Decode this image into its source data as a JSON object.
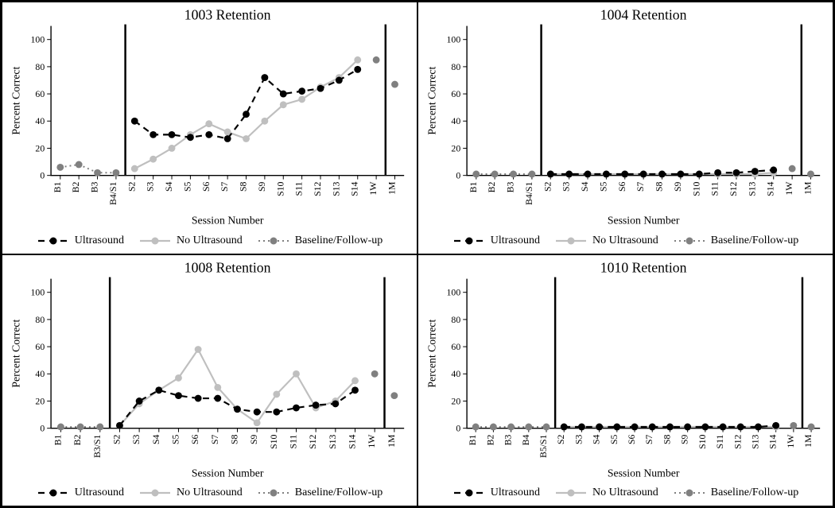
{
  "global": {
    "background_color": "#ffffff",
    "panel_border_color": "#000000",
    "font_family": "Times New Roman",
    "title_fontsize": 18,
    "axis_label_fontsize": 14,
    "tick_fontsize": 12,
    "legend_fontsize": 14,
    "ylim": [
      0,
      110
    ],
    "ytick_step": 20,
    "ytick_max": 100,
    "ylabel": "Percent Correct",
    "xlabel": "Session Number",
    "axis_color": "#000000",
    "tick_color": "#000000",
    "separator_color": "#000000",
    "separator_width": 2.5,
    "series_styles": {
      "ultrasound": {
        "color": "#000000",
        "dash": "8,6",
        "marker": "circle",
        "marker_fill": "#000000",
        "marker_size": 4.5,
        "line_width": 2.2,
        "label": "Ultrasound"
      },
      "no_ultrasound": {
        "color": "#bfbfbf",
        "dash": "",
        "marker": "circle",
        "marker_fill": "#bfbfbf",
        "marker_size": 4.5,
        "line_width": 2.2,
        "label": "No Ultrasound"
      },
      "baseline": {
        "color": "#808080",
        "dash": "2,4",
        "marker": "circle",
        "marker_fill": "#808080",
        "marker_size": 4.5,
        "line_width": 2.0,
        "label": "Baseline/Follow-up"
      }
    },
    "legend_order": [
      "ultrasound",
      "no_ultrasound",
      "baseline"
    ]
  },
  "panels": [
    {
      "title": "1003 Retention",
      "categories": [
        "B1",
        "B2",
        "B3",
        "B4/S1",
        "S2",
        "S3",
        "S4",
        "S5",
        "S6",
        "S7",
        "S8",
        "S9",
        "S10",
        "S11",
        "S12",
        "S13",
        "S14",
        "1W",
        "1M"
      ],
      "separators_after": [
        "B4/S1",
        "1W"
      ],
      "series": {
        "baseline": {
          "points": [
            {
              "x": "B1",
              "y": 6
            },
            {
              "x": "B2",
              "y": 8
            },
            {
              "x": "B3",
              "y": 2
            },
            {
              "x": "B4/S1",
              "y": 2
            },
            {
              "x": "1W",
              "y": 85
            },
            {
              "x": "1M",
              "y": 67
            }
          ],
          "segments": [
            [
              "B1",
              "B2",
              "B3",
              "B4/S1"
            ]
          ]
        },
        "ultrasound": {
          "points": [
            {
              "x": "S2",
              "y": 40
            },
            {
              "x": "S3",
              "y": 30
            },
            {
              "x": "S4",
              "y": 30
            },
            {
              "x": "S5",
              "y": 28
            },
            {
              "x": "S6",
              "y": 30
            },
            {
              "x": "S7",
              "y": 27
            },
            {
              "x": "S8",
              "y": 45
            },
            {
              "x": "S9",
              "y": 72
            },
            {
              "x": "S10",
              "y": 60
            },
            {
              "x": "S11",
              "y": 62
            },
            {
              "x": "S12",
              "y": 64
            },
            {
              "x": "S13",
              "y": 70
            },
            {
              "x": "S14",
              "y": 78
            }
          ],
          "segments": [
            [
              "S2",
              "S3",
              "S4",
              "S5",
              "S6",
              "S7",
              "S8",
              "S9",
              "S10",
              "S11",
              "S12",
              "S13",
              "S14"
            ]
          ]
        },
        "no_ultrasound": {
          "points": [
            {
              "x": "S2",
              "y": 5
            },
            {
              "x": "S3",
              "y": 12
            },
            {
              "x": "S4",
              "y": 20
            },
            {
              "x": "S5",
              "y": 30
            },
            {
              "x": "S6",
              "y": 38
            },
            {
              "x": "S7",
              "y": 32
            },
            {
              "x": "S8",
              "y": 27
            },
            {
              "x": "S9",
              "y": 40
            },
            {
              "x": "S10",
              "y": 52
            },
            {
              "x": "S11",
              "y": 56
            },
            {
              "x": "S12",
              "y": 65
            },
            {
              "x": "S13",
              "y": 72
            },
            {
              "x": "S14",
              "y": 85
            }
          ],
          "segments": [
            [
              "S2",
              "S3",
              "S4",
              "S5",
              "S6",
              "S7",
              "S8",
              "S9",
              "S10",
              "S11",
              "S12",
              "S13",
              "S14"
            ]
          ]
        }
      }
    },
    {
      "title": "1004 Retention",
      "categories": [
        "B1",
        "B2",
        "B3",
        "B4/S1",
        "S2",
        "S3",
        "S4",
        "S5",
        "S6",
        "S7",
        "S8",
        "S9",
        "S10",
        "S11",
        "S12",
        "S13",
        "S14",
        "1W",
        "1M"
      ],
      "separators_after": [
        "B4/S1",
        "1W"
      ],
      "series": {
        "baseline": {
          "points": [
            {
              "x": "B1",
              "y": 1
            },
            {
              "x": "B2",
              "y": 1
            },
            {
              "x": "B3",
              "y": 1
            },
            {
              "x": "B4/S1",
              "y": 1
            },
            {
              "x": "1W",
              "y": 5
            },
            {
              "x": "1M",
              "y": 1
            }
          ],
          "segments": [
            [
              "B1",
              "B2",
              "B3",
              "B4/S1"
            ]
          ]
        },
        "ultrasound": {
          "points": [
            {
              "x": "S2",
              "y": 1
            },
            {
              "x": "S3",
              "y": 1
            },
            {
              "x": "S4",
              "y": 1
            },
            {
              "x": "S5",
              "y": 1
            },
            {
              "x": "S6",
              "y": 1
            },
            {
              "x": "S7",
              "y": 1
            },
            {
              "x": "S8",
              "y": 1
            },
            {
              "x": "S9",
              "y": 1
            },
            {
              "x": "S10",
              "y": 1
            },
            {
              "x": "S11",
              "y": 2
            },
            {
              "x": "S12",
              "y": 2
            },
            {
              "x": "S13",
              "y": 3
            },
            {
              "x": "S14",
              "y": 4
            }
          ],
          "segments": [
            [
              "S2",
              "S3",
              "S4",
              "S5",
              "S6",
              "S7",
              "S8",
              "S9",
              "S10",
              "S11",
              "S12",
              "S13",
              "S14"
            ]
          ]
        },
        "no_ultrasound": {
          "points": [
            {
              "x": "S2",
              "y": 1
            },
            {
              "x": "S3",
              "y": 1
            },
            {
              "x": "S4",
              "y": 1
            },
            {
              "x": "S5",
              "y": 1
            },
            {
              "x": "S6",
              "y": 1
            },
            {
              "x": "S7",
              "y": 1
            },
            {
              "x": "S8",
              "y": 1
            },
            {
              "x": "S9",
              "y": 1
            },
            {
              "x": "S10",
              "y": 1
            },
            {
              "x": "S11",
              "y": 1
            },
            {
              "x": "S12",
              "y": 1
            },
            {
              "x": "S13",
              "y": 1
            },
            {
              "x": "S14",
              "y": 2
            }
          ],
          "segments": [
            [
              "S2",
              "S3",
              "S4",
              "S5",
              "S6",
              "S7",
              "S8",
              "S9",
              "S10",
              "S11",
              "S12",
              "S13",
              "S14"
            ]
          ]
        }
      }
    },
    {
      "title": "1008 Retention",
      "categories": [
        "B1",
        "B2",
        "B3/S1",
        "S2",
        "S3",
        "S4",
        "S5",
        "S6",
        "S7",
        "S8",
        "S9",
        "S10",
        "S11",
        "S12",
        "S13",
        "S14",
        "1W",
        "1M"
      ],
      "separators_after": [
        "B3/S1",
        "1W"
      ],
      "series": {
        "baseline": {
          "points": [
            {
              "x": "B1",
              "y": 1
            },
            {
              "x": "B2",
              "y": 1
            },
            {
              "x": "B3/S1",
              "y": 1
            },
            {
              "x": "1W",
              "y": 40
            },
            {
              "x": "1M",
              "y": 24
            }
          ],
          "segments": [
            [
              "B1",
              "B2",
              "B3/S1"
            ]
          ]
        },
        "ultrasound": {
          "points": [
            {
              "x": "S2",
              "y": 2
            },
            {
              "x": "S3",
              "y": 20
            },
            {
              "x": "S4",
              "y": 28
            },
            {
              "x": "S5",
              "y": 24
            },
            {
              "x": "S6",
              "y": 22
            },
            {
              "x": "S7",
              "y": 22
            },
            {
              "x": "S8",
              "y": 14
            },
            {
              "x": "S9",
              "y": 12
            },
            {
              "x": "S10",
              "y": 12
            },
            {
              "x": "S11",
              "y": 15
            },
            {
              "x": "S12",
              "y": 17
            },
            {
              "x": "S13",
              "y": 18
            },
            {
              "x": "S14",
              "y": 28
            }
          ],
          "segments": [
            [
              "S2",
              "S3",
              "S4",
              "S5",
              "S6",
              "S7",
              "S8",
              "S9",
              "S10",
              "S11",
              "S12",
              "S13",
              "S14"
            ]
          ]
        },
        "no_ultrasound": {
          "points": [
            {
              "x": "S2",
              "y": 2
            },
            {
              "x": "S3",
              "y": 18
            },
            {
              "x": "S4",
              "y": 28
            },
            {
              "x": "S5",
              "y": 37
            },
            {
              "x": "S6",
              "y": 58
            },
            {
              "x": "S7",
              "y": 30
            },
            {
              "x": "S8",
              "y": 14
            },
            {
              "x": "S9",
              "y": 4
            },
            {
              "x": "S10",
              "y": 25
            },
            {
              "x": "S11",
              "y": 40
            },
            {
              "x": "S12",
              "y": 15
            },
            {
              "x": "S13",
              "y": 20
            },
            {
              "x": "S14",
              "y": 35
            }
          ],
          "segments": [
            [
              "S2",
              "S3",
              "S4",
              "S5",
              "S6",
              "S7",
              "S8",
              "S9",
              "S10",
              "S11",
              "S12",
              "S13",
              "S14"
            ]
          ]
        }
      }
    },
    {
      "title": "1010 Retention",
      "categories": [
        "B1",
        "B2",
        "B3",
        "B4",
        "B5/S1",
        "S2",
        "S3",
        "S4",
        "S5",
        "S6",
        "S7",
        "S8",
        "S9",
        "S10",
        "S11",
        "S12",
        "S13",
        "S14",
        "1W",
        "1M"
      ],
      "separators_after": [
        "B5/S1",
        "1W"
      ],
      "series": {
        "baseline": {
          "points": [
            {
              "x": "B1",
              "y": 1
            },
            {
              "x": "B2",
              "y": 1
            },
            {
              "x": "B3",
              "y": 1
            },
            {
              "x": "B4",
              "y": 1
            },
            {
              "x": "B5/S1",
              "y": 1
            },
            {
              "x": "1W",
              "y": 2
            },
            {
              "x": "1M",
              "y": 1
            }
          ],
          "segments": [
            [
              "B1",
              "B2",
              "B3",
              "B4",
              "B5/S1"
            ]
          ]
        },
        "ultrasound": {
          "points": [
            {
              "x": "S2",
              "y": 1
            },
            {
              "x": "S3",
              "y": 1
            },
            {
              "x": "S4",
              "y": 1
            },
            {
              "x": "S5",
              "y": 1
            },
            {
              "x": "S6",
              "y": 1
            },
            {
              "x": "S7",
              "y": 1
            },
            {
              "x": "S8",
              "y": 1
            },
            {
              "x": "S9",
              "y": 1
            },
            {
              "x": "S10",
              "y": 1
            },
            {
              "x": "S11",
              "y": 1
            },
            {
              "x": "S12",
              "y": 1
            },
            {
              "x": "S13",
              "y": 1
            },
            {
              "x": "S14",
              "y": 2
            }
          ],
          "segments": [
            [
              "S2",
              "S3",
              "S4",
              "S5",
              "S6",
              "S7",
              "S8",
              "S9",
              "S10",
              "S11",
              "S12",
              "S13",
              "S14"
            ]
          ]
        },
        "no_ultrasound": {
          "points": [
            {
              "x": "S2",
              "y": 1
            },
            {
              "x": "S3",
              "y": 1
            },
            {
              "x": "S4",
              "y": 1
            },
            {
              "x": "S5",
              "y": 1
            },
            {
              "x": "S6",
              "y": 1
            },
            {
              "x": "S7",
              "y": 1
            },
            {
              "x": "S8",
              "y": 1
            },
            {
              "x": "S9",
              "y": 1
            },
            {
              "x": "S10",
              "y": 1
            },
            {
              "x": "S11",
              "y": 1
            },
            {
              "x": "S12",
              "y": 1
            },
            {
              "x": "S13",
              "y": 1
            },
            {
              "x": "S14",
              "y": 1
            }
          ],
          "segments": [
            [
              "S2",
              "S3",
              "S4",
              "S5",
              "S6",
              "S7",
              "S8",
              "S9",
              "S10",
              "S11",
              "S12",
              "S13",
              "S14"
            ]
          ]
        }
      }
    }
  ]
}
